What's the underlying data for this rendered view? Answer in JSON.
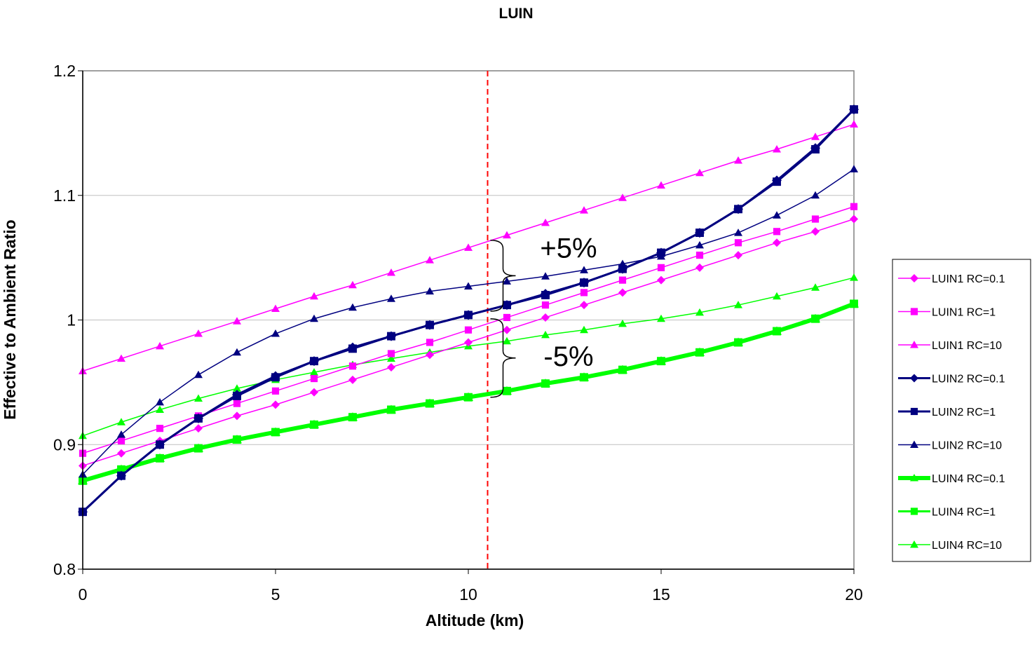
{
  "chart_data": {
    "type": "line",
    "title": "LUIN",
    "xlabel": "Altitude (km)",
    "ylabel": "Effective to Ambient Ratio",
    "xlim": [
      0,
      20
    ],
    "ylim": [
      0.8,
      1.2
    ],
    "xticks": [
      "0",
      "5",
      "10",
      "15",
      "20"
    ],
    "yticks": [
      "0.8",
      "0.9",
      "1",
      "1.1",
      "1.2"
    ],
    "grid": "horizontal",
    "legend_position": "right",
    "reference_line": {
      "x": 10.5,
      "color": "#ff0000",
      "style": "dashed"
    },
    "annotations": [
      {
        "text": "+5%",
        "x": 12.6,
        "y": 1.058
      },
      {
        "text": "-5%",
        "x": 12.6,
        "y": 0.971
      }
    ],
    "x": [
      0,
      1,
      2,
      3,
      4,
      5,
      6,
      7,
      8,
      9,
      10,
      11,
      12,
      13,
      14,
      15,
      16,
      17,
      18,
      19,
      20
    ],
    "series": [
      {
        "name": "LUIN1 RC=0.1",
        "color": "#ff00ff",
        "marker": "diamond",
        "width": 1.5,
        "values": [
          0.883,
          0.893,
          0.903,
          0.913,
          0.923,
          0.932,
          0.942,
          0.952,
          0.962,
          0.972,
          0.982,
          0.992,
          1.002,
          1.012,
          1.022,
          1.032,
          1.042,
          1.052,
          1.062,
          1.071,
          1.081
        ]
      },
      {
        "name": "LUIN1 RC=1",
        "color": "#ff00ff",
        "marker": "square",
        "width": 1.5,
        "values": [
          0.893,
          0.903,
          0.913,
          0.923,
          0.933,
          0.943,
          0.953,
          0.963,
          0.973,
          0.982,
          0.992,
          1.002,
          1.012,
          1.022,
          1.032,
          1.042,
          1.052,
          1.062,
          1.071,
          1.081,
          1.091
        ]
      },
      {
        "name": "LUIN1 RC=10",
        "color": "#ff00ff",
        "marker": "triangle",
        "width": 1.5,
        "values": [
          0.959,
          0.969,
          0.979,
          0.989,
          0.999,
          1.009,
          1.019,
          1.028,
          1.038,
          1.048,
          1.058,
          1.068,
          1.078,
          1.088,
          1.098,
          1.108,
          1.118,
          1.128,
          1.137,
          1.147,
          1.157
        ]
      },
      {
        "name": "LUIN2 RC=0.1",
        "color": "#000080",
        "marker": "diamond",
        "width": 3,
        "values": [
          0.846,
          0.875,
          0.9,
          0.921,
          0.94,
          0.955,
          0.967,
          0.978,
          0.987,
          0.996,
          1.004,
          1.012,
          1.021,
          1.03,
          1.041,
          1.054,
          1.07,
          1.089,
          1.112,
          1.138,
          1.169
        ]
      },
      {
        "name": "LUIN2 RC=1",
        "color": "#000080",
        "marker": "square",
        "width": 3,
        "values": [
          0.846,
          0.875,
          0.9,
          0.921,
          0.939,
          0.954,
          0.967,
          0.977,
          0.987,
          0.996,
          1.004,
          1.012,
          1.02,
          1.03,
          1.041,
          1.054,
          1.07,
          1.089,
          1.111,
          1.137,
          1.169
        ]
      },
      {
        "name": "LUIN2 RC=10",
        "color": "#000080",
        "marker": "triangle",
        "width": 1.5,
        "values": [
          0.876,
          0.908,
          0.934,
          0.956,
          0.974,
          0.989,
          1.001,
          1.01,
          1.017,
          1.023,
          1.027,
          1.031,
          1.035,
          1.04,
          1.045,
          1.051,
          1.06,
          1.07,
          1.084,
          1.1,
          1.121
        ]
      },
      {
        "name": "LUIN4 RC=0.1",
        "color": "#00ff00",
        "marker": "triangle",
        "width": 6,
        "values": [
          0.871,
          0.88,
          0.889,
          0.897,
          0.904,
          0.91,
          0.916,
          0.922,
          0.928,
          0.933,
          0.938,
          0.943,
          0.949,
          0.954,
          0.96,
          0.967,
          0.974,
          0.982,
          0.991,
          1.001,
          1.013
        ]
      },
      {
        "name": "LUIN4 RC=1",
        "color": "#00ff00",
        "marker": "square",
        "width": 3,
        "values": [
          0.871,
          0.88,
          0.889,
          0.897,
          0.904,
          0.91,
          0.916,
          0.922,
          0.928,
          0.933,
          0.938,
          0.943,
          0.949,
          0.954,
          0.96,
          0.967,
          0.974,
          0.982,
          0.991,
          1.001,
          1.013
        ]
      },
      {
        "name": "LUIN4 RC=10",
        "color": "#00ff00",
        "marker": "triangle",
        "width": 1.5,
        "values": [
          0.907,
          0.918,
          0.928,
          0.937,
          0.945,
          0.952,
          0.958,
          0.964,
          0.969,
          0.974,
          0.979,
          0.983,
          0.988,
          0.992,
          0.997,
          1.001,
          1.006,
          1.012,
          1.019,
          1.026,
          1.034
        ]
      }
    ]
  }
}
